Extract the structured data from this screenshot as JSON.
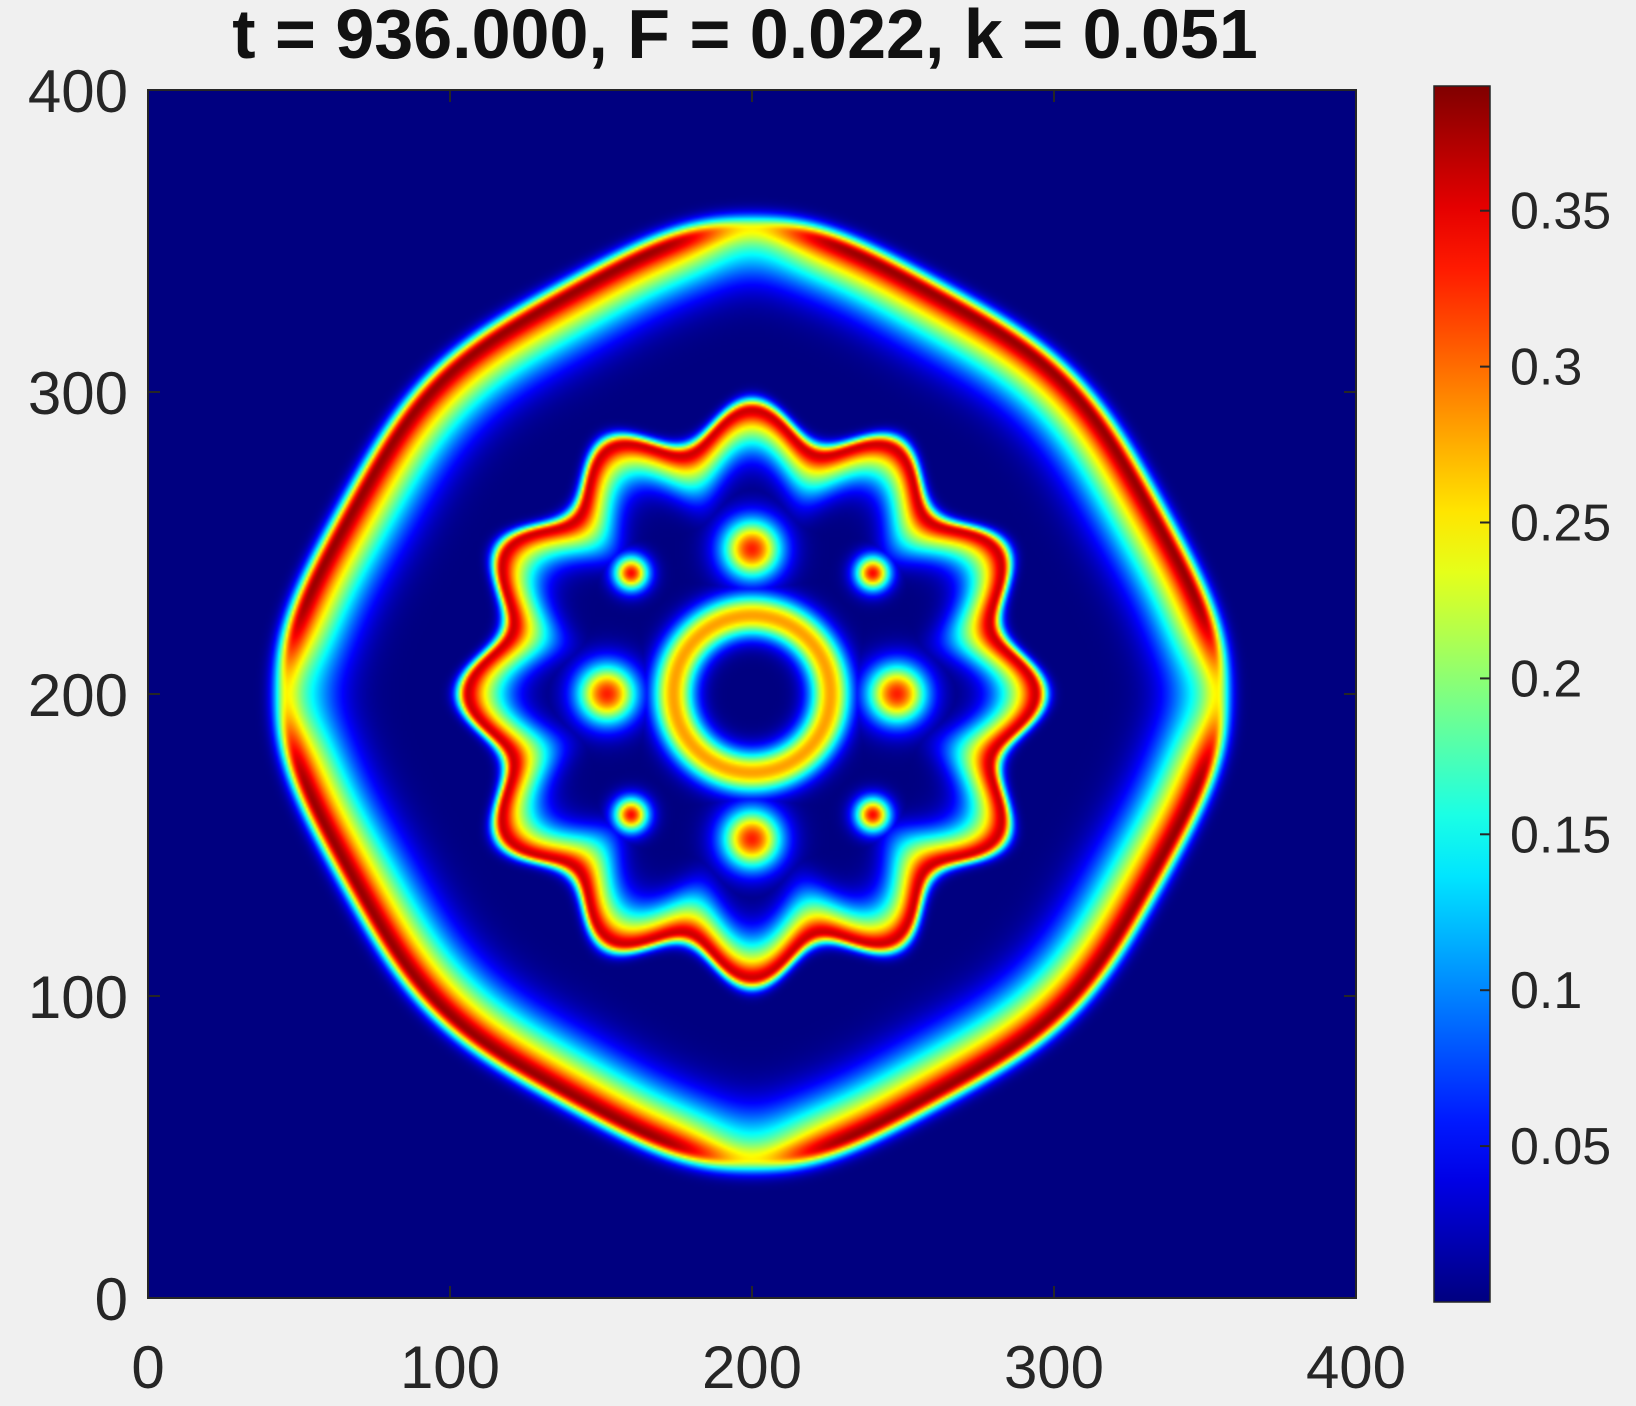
{
  "chart_data": {
    "type": "heatmap",
    "title": "t = 936.000, F = 0.022, k = 0.051",
    "xlabel": "",
    "ylabel": "",
    "xlim": [
      0,
      400
    ],
    "ylim": [
      0,
      400
    ],
    "x_ticks": [
      0,
      100,
      200,
      300,
      400
    ],
    "x_tick_labels": [
      "0",
      "100",
      "200",
      "300",
      "400"
    ],
    "y_ticks": [
      0,
      100,
      200,
      300,
      400
    ],
    "y_tick_labels": [
      "0",
      "100",
      "200",
      "300",
      "400"
    ],
    "colormap": "jet",
    "clim": [
      0,
      0.39
    ],
    "colorbar_ticks": [
      0.05,
      0.1,
      0.15,
      0.2,
      0.25,
      0.3,
      0.35
    ],
    "colorbar_tick_labels": [
      "0.05",
      "0.1",
      "0.15",
      "0.2",
      "0.25",
      "0.3",
      "0.35"
    ],
    "background_value": 0.0,
    "features": [
      {
        "name": "outer-ring",
        "cx": 200,
        "cy": 200,
        "rx": 148,
        "ry": 150,
        "peak": 0.38
      },
      {
        "name": "middle-ring",
        "cx": 200,
        "cy": 200,
        "r": 88,
        "peak": 0.37
      },
      {
        "name": "inner-ring",
        "cx": 200,
        "cy": 200,
        "r": 26,
        "peak": 0.3
      },
      {
        "name": "dot",
        "cx": 160,
        "cy": 240,
        "peak": 0.34
      },
      {
        "name": "dot",
        "cx": 240,
        "cy": 240,
        "peak": 0.34
      },
      {
        "name": "dot",
        "cx": 160,
        "cy": 160,
        "peak": 0.34
      },
      {
        "name": "dot",
        "cx": 240,
        "cy": 160,
        "peak": 0.34
      }
    ]
  },
  "colors": {
    "background": "#f0f0f0",
    "axis": "#262626"
  }
}
